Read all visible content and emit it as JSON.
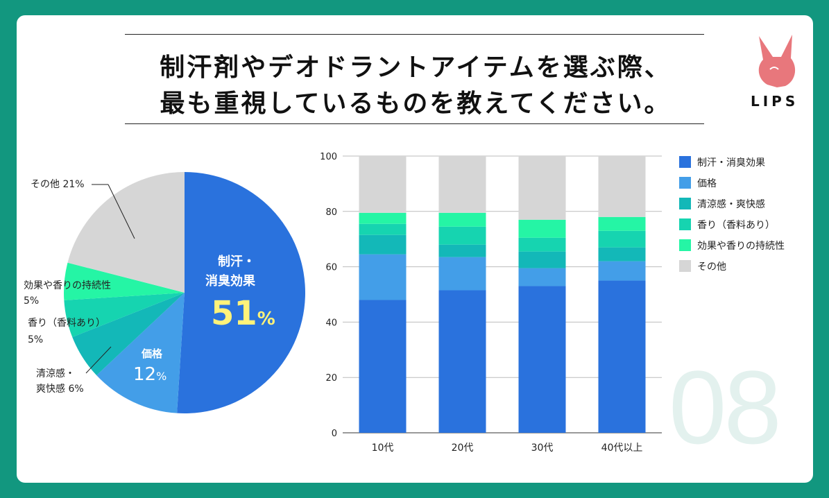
{
  "title": {
    "line1": "制汗剤やデオドラントアイテムを選ぶ際、",
    "line2": "最も重視しているものを教えてください。"
  },
  "brand": {
    "name": "LIPS",
    "color": "#e8777c"
  },
  "background_number": "08",
  "colors": {
    "sweat": "#2a72dd",
    "price": "#439ee8",
    "cool": "#13b8b8",
    "scent": "#16d4b0",
    "lasting": "#25f5a5",
    "other": "#d6d6d6"
  },
  "pie": {
    "slices": [
      {
        "key": "sweat",
        "value": 51
      },
      {
        "key": "price",
        "value": 12
      },
      {
        "key": "cool",
        "value": 6
      },
      {
        "key": "scent",
        "value": 5
      },
      {
        "key": "lasting",
        "value": 5
      },
      {
        "key": "other",
        "value": 21
      }
    ],
    "labels": {
      "sweat_name_1": "制汗・",
      "sweat_name_2": "消臭効果",
      "sweat_pct": "51",
      "price_name": "価格",
      "price_pct": "12",
      "pct_sign": "%",
      "other": "その他 21%",
      "lasting_name": "効果や香りの持続性",
      "lasting_pct": "5%",
      "scent_name": "香り（香料あり）",
      "scent_pct": "5%",
      "cool_name_1": "清涼感・",
      "cool_name_2": "爽快感 6%"
    }
  },
  "chart_data": {
    "type": "bar",
    "stacked": true,
    "categories": [
      "10代",
      "20代",
      "30代",
      "40代以上"
    ],
    "ylim": [
      0,
      100
    ],
    "yticks": [
      0,
      20,
      40,
      60,
      80,
      100
    ],
    "legend_position": "right",
    "series": [
      {
        "name": "制汗・消臭効果",
        "key": "sweat",
        "values": [
          48,
          51.5,
          53,
          55
        ]
      },
      {
        "name": "価格",
        "key": "price",
        "values": [
          16.5,
          12,
          6.5,
          7
        ]
      },
      {
        "name": "清涼感・爽快感",
        "key": "cool",
        "values": [
          7,
          4.5,
          6,
          5
        ]
      },
      {
        "name": "香り（香料あり）",
        "key": "scent",
        "values": [
          4,
          6.5,
          5,
          6
        ]
      },
      {
        "name": "効果や香りの持続性",
        "key": "lasting",
        "values": [
          4,
          5,
          6.5,
          5
        ]
      },
      {
        "name": "その他",
        "key": "other",
        "values": [
          20.5,
          20.5,
          23,
          22
        ]
      }
    ]
  }
}
